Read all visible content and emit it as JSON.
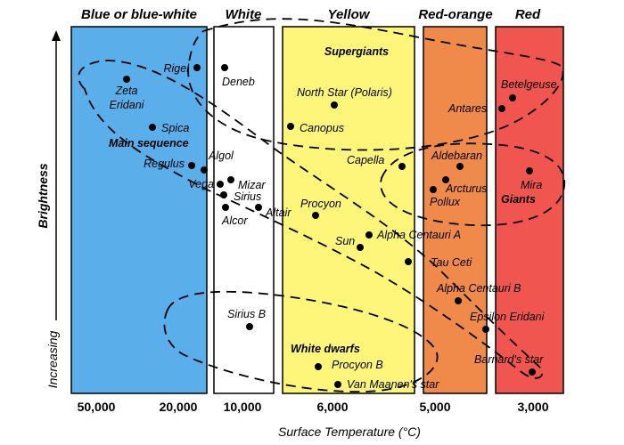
{
  "bands": [
    {
      "title": "Blue or blue-white",
      "color": "#5aaeea"
    },
    {
      "title": "White",
      "color": "#ffffff"
    },
    {
      "title": "Yellow",
      "color": "#fdf67a"
    },
    {
      "title": "Red-orange",
      "color": "#f08a4b"
    },
    {
      "title": "Red",
      "color": "#f0554f"
    }
  ],
  "regions": {
    "supergiants": "Supergiants",
    "main_sequence": "Main sequence",
    "giants": "Giants",
    "white_dwarfs": "White dwarfs"
  },
  "stars": [
    {
      "name": "Rigel"
    },
    {
      "name": "Deneb"
    },
    {
      "name": "Zeta Eridani",
      "lines": [
        "Zeta",
        "Eridani"
      ]
    },
    {
      "name": "Spica"
    },
    {
      "name": "Regulus"
    },
    {
      "name": "Algol"
    },
    {
      "name": "Vega"
    },
    {
      "name": "Mizar"
    },
    {
      "name": "Sirius"
    },
    {
      "name": "Alcor"
    },
    {
      "name": "Altair"
    },
    {
      "name": "North Star (Polaris)"
    },
    {
      "name": "Canopus"
    },
    {
      "name": "Procyon"
    },
    {
      "name": "Capella"
    },
    {
      "name": "Sun"
    },
    {
      "name": "Alpha Centauri A"
    },
    {
      "name": "Tau Ceti"
    },
    {
      "name": "Aldebaran"
    },
    {
      "name": "Arcturus"
    },
    {
      "name": "Pollux"
    },
    {
      "name": "Alpha Centauri B"
    },
    {
      "name": "Epsilon Eridani"
    },
    {
      "name": "Barnard's star"
    },
    {
      "name": "Betelgeuse"
    },
    {
      "name": "Antares"
    },
    {
      "name": "Mira"
    },
    {
      "name": "Sirius B"
    },
    {
      "name": "Procyon B"
    },
    {
      "name": "Van Maanen's star"
    }
  ],
  "x_axis": {
    "title": "Surface Temperature (°C)",
    "ticks": [
      "50,000",
      "20,000",
      "10,000",
      "6,000",
      "5,000",
      "3,000"
    ]
  },
  "y_axis": {
    "title": "Brightness",
    "sub": "Increasing"
  }
}
